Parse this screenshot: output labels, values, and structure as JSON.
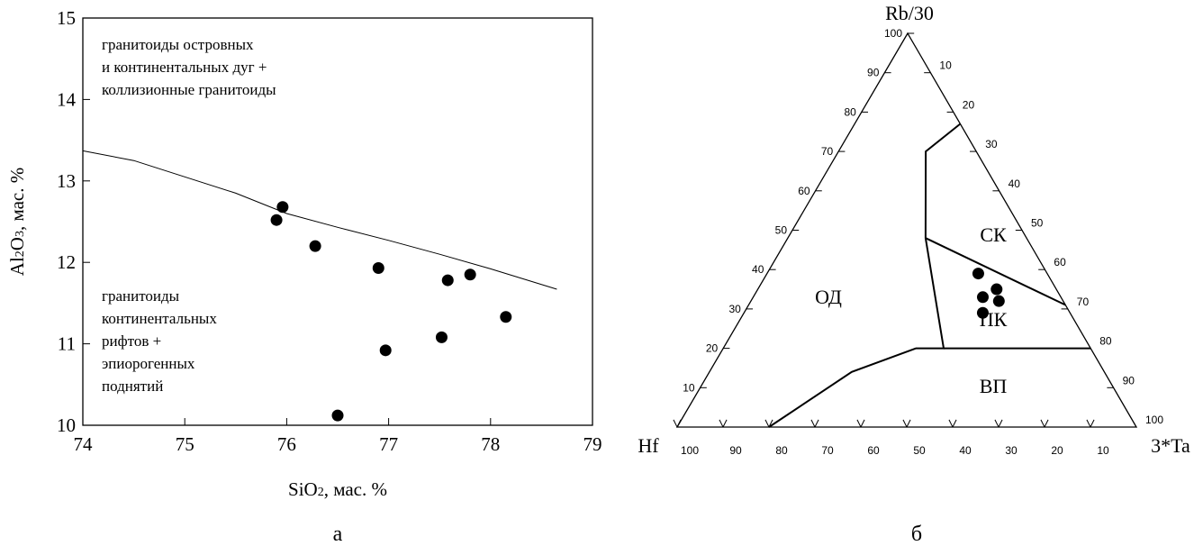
{
  "panel_a": {
    "caption": "а",
    "region_upper": [
      "гранитоиды островных",
      "и континентальных дуг +",
      "коллизионные гранитоиды"
    ],
    "region_lower": [
      "гранитоиды",
      "континентальных",
      "рифтов +",
      "эпиорогенных",
      "поднятий"
    ]
  },
  "panel_b": {
    "caption": "б"
  },
  "chart_data": [
    {
      "type": "scatter",
      "xlabel": "SiO2, мас. %",
      "ylabel": "Al2O3, мас. %",
      "xlim": [
        74,
        79
      ],
      "ylim": [
        10,
        15
      ],
      "x_ticks": [
        "74",
        "75",
        "76",
        "77",
        "78",
        "79"
      ],
      "y_ticks": [
        "10",
        "11",
        "12",
        "13",
        "14",
        "15"
      ],
      "grid": false,
      "boundary": {
        "x": [
          74.0,
          74.5,
          75.0,
          75.5,
          76.0,
          76.5,
          77.0,
          77.5,
          78.0,
          78.65
        ],
        "y": [
          13.37,
          13.25,
          13.05,
          12.85,
          12.6,
          12.43,
          12.27,
          12.1,
          11.92,
          11.67
        ]
      },
      "points": {
        "x": [
          75.9,
          75.96,
          76.28,
          76.5,
          76.9,
          76.97,
          77.52,
          77.58,
          77.8,
          78.15
        ],
        "y": [
          12.52,
          12.68,
          12.2,
          10.12,
          11.93,
          10.92,
          11.08,
          11.78,
          11.85,
          11.33
        ]
      }
    },
    {
      "type": "ternary",
      "apex_top": "Rb/30",
      "apex_left": "Hf",
      "apex_right": "3*Ta",
      "field_labels": [
        "ОД",
        "СК",
        "ПК",
        "ВП"
      ],
      "tick_labels_left": [
        "100",
        "90",
        "80",
        "70",
        "60",
        "50",
        "40",
        "30",
        "20",
        "10"
      ],
      "tick_labels_right": [
        "10",
        "20",
        "30",
        "40",
        "50",
        "60",
        "70",
        "80",
        "90",
        "100"
      ],
      "tick_labels_bottom": [
        "100",
        "90",
        "80",
        "70",
        "60",
        "50",
        "40",
        "30",
        "20",
        "10"
      ],
      "points": [
        {
          "Rb/30": 39,
          "Hf": 15,
          "3*Ta": 46
        },
        {
          "Rb/30": 35,
          "Hf": 13,
          "3*Ta": 52
        },
        {
          "Rb/30": 33,
          "Hf": 17,
          "3*Ta": 50
        },
        {
          "Rb/30": 32,
          "Hf": 14,
          "3*Ta": 54
        },
        {
          "Rb/30": 29,
          "Hf": 19,
          "3*Ta": 52
        }
      ],
      "boundaries": [
        {
          "name": "ОД-СК",
          "points": [
            {
              "Rb/30": 77,
              "Hf": 0,
              "3*Ta": 23
            },
            {
              "Rb/30": 70,
              "Hf": 11,
              "3*Ta": 19
            },
            {
              "Rb/30": 48,
              "Hf": 22,
              "3*Ta": 30
            },
            {
              "Rb/30": 20,
              "Hf": 32,
              "3*Ta": 48
            },
            {
              "Rb/30": 20,
              "Hf": 38,
              "3*Ta": 42
            },
            {
              "Rb/30": 14,
              "Hf": 55,
              "3*Ta": 31
            },
            {
              "Rb/30": 0,
              "Hf": 80,
              "3*Ta": 20
            }
          ]
        },
        {
          "name": "СК-ПК",
          "points": [
            {
              "Rb/30": 48,
              "Hf": 22,
              "3*Ta": 30
            },
            {
              "Rb/30": 31,
              "Hf": 0,
              "3*Ta": 69
            }
          ]
        },
        {
          "name": "ПК-ВП",
          "points": [
            {
              "Rb/30": 20,
              "Hf": 32,
              "3*Ta": 48
            },
            {
              "Rb/30": 20,
              "Hf": 0,
              "3*Ta": 80
            }
          ]
        }
      ]
    }
  ]
}
